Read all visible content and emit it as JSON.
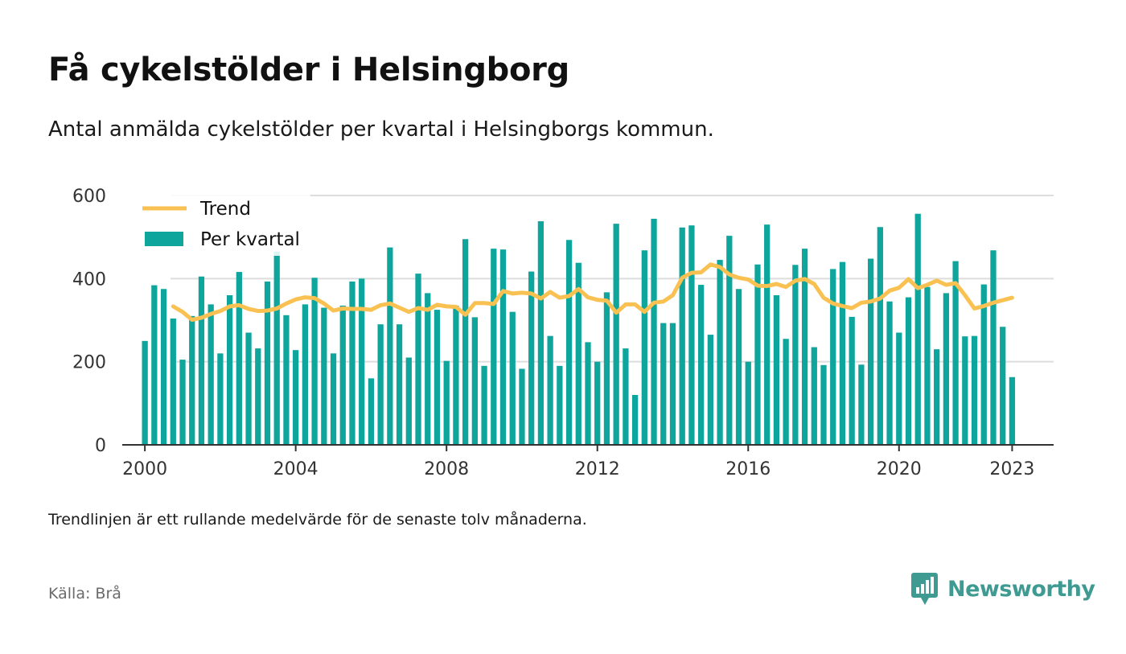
{
  "header": {
    "title": "Få cykelstölder i Helsingborg",
    "subtitle": "Antal anmälda cykelstölder per kvartal i Helsingborgs kommun."
  },
  "footer": {
    "note": "Trendlinjen är ett rullande medelvärde för de senaste tolv månaderna.",
    "source": "Källa: Brå",
    "brand": "Newsworthy",
    "brand_icon": "bar-chart-speech-bubble-icon"
  },
  "colors": {
    "bars": "#0ea59c",
    "trend": "#f9c152",
    "grid": "#dddddd",
    "axis": "#333333",
    "brand": "#3f9a91"
  },
  "chart_data": {
    "type": "bar",
    "title": "Få cykelstölder i Helsingborg",
    "xlabel": "",
    "ylabel": "",
    "ylim": [
      0,
      600
    ],
    "yticks": [
      0,
      200,
      400,
      600
    ],
    "xticks": [
      "2000",
      "2004",
      "2008",
      "2012",
      "2016",
      "2020",
      "2023"
    ],
    "xlim": [
      1999.4,
      2024.1
    ],
    "grid": true,
    "legend": "top-left",
    "legend_entries": [
      "Trend",
      "Per kvartal"
    ],
    "x": [
      2000.0,
      2000.25,
      2000.5,
      2000.75,
      2001.0,
      2001.25,
      2001.5,
      2001.75,
      2002.0,
      2002.25,
      2002.5,
      2002.75,
      2003.0,
      2003.25,
      2003.5,
      2003.75,
      2004.0,
      2004.25,
      2004.5,
      2004.75,
      2005.0,
      2005.25,
      2005.5,
      2005.75,
      2006.0,
      2006.25,
      2006.5,
      2006.75,
      2007.0,
      2007.25,
      2007.5,
      2007.75,
      2008.0,
      2008.25,
      2008.5,
      2008.75,
      2009.0,
      2009.25,
      2009.5,
      2009.75,
      2010.0,
      2010.25,
      2010.5,
      2010.75,
      2011.0,
      2011.25,
      2011.5,
      2011.75,
      2012.0,
      2012.25,
      2012.5,
      2012.75,
      2013.0,
      2013.25,
      2013.5,
      2013.75,
      2014.0,
      2014.25,
      2014.5,
      2014.75,
      2015.0,
      2015.25,
      2015.5,
      2015.75,
      2016.0,
      2016.25,
      2016.5,
      2016.75,
      2017.0,
      2017.25,
      2017.5,
      2017.75,
      2018.0,
      2018.25,
      2018.5,
      2018.75,
      2019.0,
      2019.25,
      2019.5,
      2019.75,
      2020.0,
      2020.25,
      2020.5,
      2020.75,
      2021.0,
      2021.25,
      2021.5,
      2021.75,
      2022.0,
      2022.25,
      2022.5,
      2022.75,
      2023.0
    ],
    "series": [
      {
        "name": "Per kvartal",
        "type": "bar",
        "values": [
          250,
          384,
          375,
          304,
          205,
          310,
          405,
          338,
          220,
          360,
          416,
          270,
          232,
          393,
          465,
          312,
          228,
          338,
          402,
          330,
          220,
          335,
          393,
          400,
          160,
          290,
          475,
          290,
          210,
          412,
          365,
          325,
          202,
          335,
          495,
          307,
          190,
          472,
          470,
          320,
          183,
          417,
          538,
          262,
          190,
          493,
          438,
          247,
          200,
          367,
          532,
          232,
          120,
          468,
          544,
          293,
          293,
          523,
          528,
          385,
          265,
          445,
          503,
          375,
          200,
          434,
          530,
          360,
          255,
          433,
          472,
          235,
          192,
          423,
          440,
          308,
          193,
          448,
          524,
          345,
          270,
          355,
          556,
          380,
          230,
          365,
          442,
          261,
          262,
          386,
          468,
          284,
          163
        ]
      },
      {
        "name": "Trend",
        "type": "line",
        "values": [
          null,
          null,
          null,
          333,
          320,
          301,
          306,
          315,
          322,
          333,
          336,
          327,
          322,
          323,
          328,
          340,
          350,
          355,
          353,
          340,
          323,
          328,
          327,
          327,
          325,
          336,
          340,
          330,
          320,
          329,
          325,
          337,
          333,
          332,
          313,
          341,
          341,
          339,
          370,
          364,
          366,
          364,
          352,
          368,
          354,
          358,
          375,
          355,
          349,
          347,
          318,
          338,
          338,
          320,
          342,
          345,
          360,
          402,
          414,
          415,
          434,
          428,
          410,
          402,
          398,
          383,
          382,
          387,
          380,
          395,
          399,
          387,
          354,
          340,
          334,
          329,
          342,
          345,
          352,
          371,
          378,
          399,
          377,
          385,
          395,
          385,
          389,
          360,
          328,
          334,
          342,
          348,
          354
        ]
      }
    ]
  }
}
